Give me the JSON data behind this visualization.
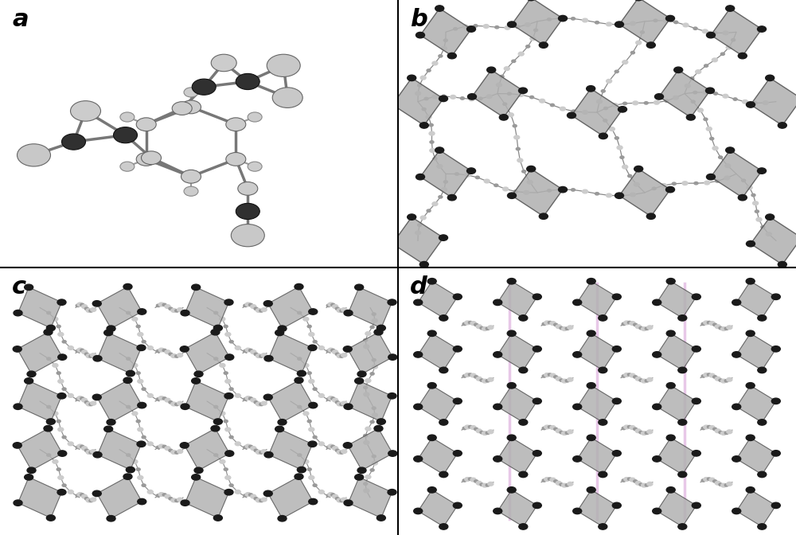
{
  "panels": [
    "a",
    "b",
    "c",
    "d"
  ],
  "label_fontsize": 22,
  "label_fontweight": "bold",
  "background_color": "#ffffff",
  "border_color": "#000000",
  "fig_width": 10.0,
  "fig_height": 6.72,
  "divider_color": "#000000",
  "divider_linewidth": 1.5,
  "atom_large_light": "#d0d0d0",
  "atom_large_dark": "#404040",
  "atom_small_light": "#c8c8c8",
  "atom_small_dark": "#202020",
  "bond_color": "#888888",
  "poly_face": "#b0b0b0",
  "poly_edge": "#505050",
  "dark_atom": "#1a1a1a"
}
